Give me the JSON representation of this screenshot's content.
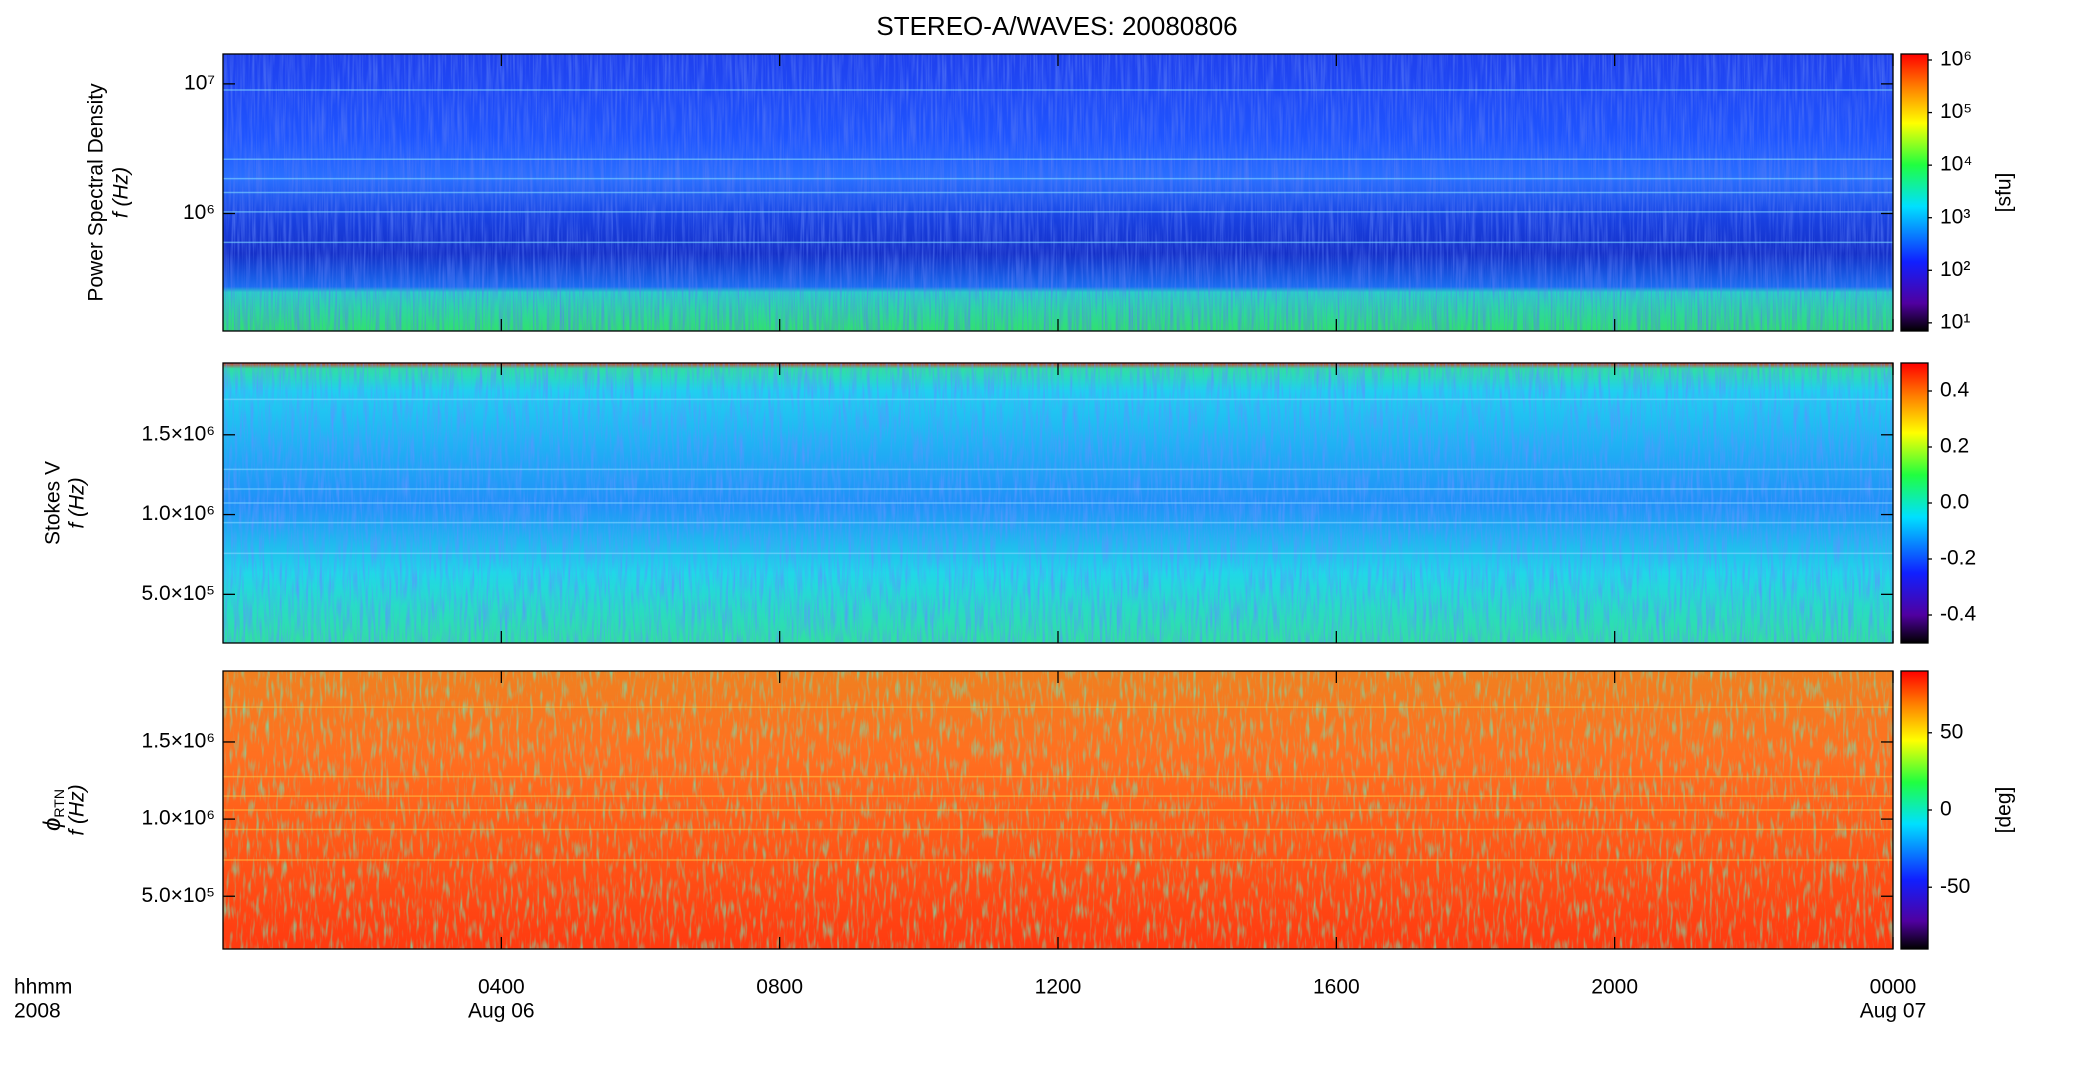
{
  "title": "STEREO-A/WAVES: 20080806",
  "xaxis": {
    "xlim": [
      0,
      24
    ],
    "xticks": [
      {
        "value": 4,
        "label": "0400"
      },
      {
        "value": 8,
        "label": "0800"
      },
      {
        "value": 12,
        "label": "1200"
      },
      {
        "value": 16,
        "label": "1600"
      },
      {
        "value": 20,
        "label": "2000"
      },
      {
        "value": 24,
        "label": "0000"
      }
    ],
    "xtick_dates": [
      {
        "value": 4,
        "label": "Aug 06"
      },
      {
        "value": 24,
        "label": "Aug 07"
      }
    ],
    "corner_labels": [
      "hhmm",
      "2008"
    ]
  },
  "chart_data": [
    {
      "type": "heatmap",
      "ylabel": "Power Spectral Density",
      "ylabel2": "f (Hz)",
      "ylog": true,
      "ylim": [
        124000,
        17000000
      ],
      "yticks": [
        {
          "value": 1000000,
          "label": "10⁶"
        },
        {
          "value": 10000000,
          "label": "10⁷"
        }
      ],
      "clog": true,
      "clim": [
        7,
        1300000
      ],
      "cticks": [
        {
          "value": 10,
          "label": "10¹"
        },
        {
          "value": 100,
          "label": "10²"
        },
        {
          "value": 1000,
          "label": "10³"
        },
        {
          "value": 10000,
          "label": "10⁴"
        },
        {
          "value": 100000,
          "label": "10⁵"
        },
        {
          "value": 1000000,
          "label": "10⁶"
        }
      ],
      "clabel": "[sfu]"
    },
    {
      "type": "heatmap",
      "ylabel": "Stokes V",
      "ylabel2": "f (Hz)",
      "ylog": false,
      "ylim": [
        195000,
        1950000
      ],
      "yticks": [
        {
          "value": 500000,
          "label": "5.0×10⁵"
        },
        {
          "value": 1000000,
          "label": "1.0×10⁶"
        },
        {
          "value": 1500000,
          "label": "1.5×10⁶"
        }
      ],
      "clog": false,
      "clim": [
        -0.5,
        0.5
      ],
      "cticks": [
        -0.4,
        -0.2,
        {
          "value": 0,
          "label": "0.0"
        },
        0.2,
        0.4
      ]
    },
    {
      "type": "heatmap",
      "ylabel": "ϕ",
      "ylabel_sub": "RTN",
      "ylabel2": "f (Hz)",
      "ylog": false,
      "ylim": [
        158000,
        1960000
      ],
      "yticks": [
        {
          "value": 500000,
          "label": "5.0×10⁵"
        },
        {
          "value": 1000000,
          "label": "1.0×10⁶"
        },
        {
          "value": 1500000,
          "label": "1.5×10⁶"
        }
      ],
      "clog": false,
      "clim": [
        -90,
        90
      ],
      "cticks": [
        -50,
        0,
        50
      ],
      "clabel": "[deg]"
    }
  ]
}
